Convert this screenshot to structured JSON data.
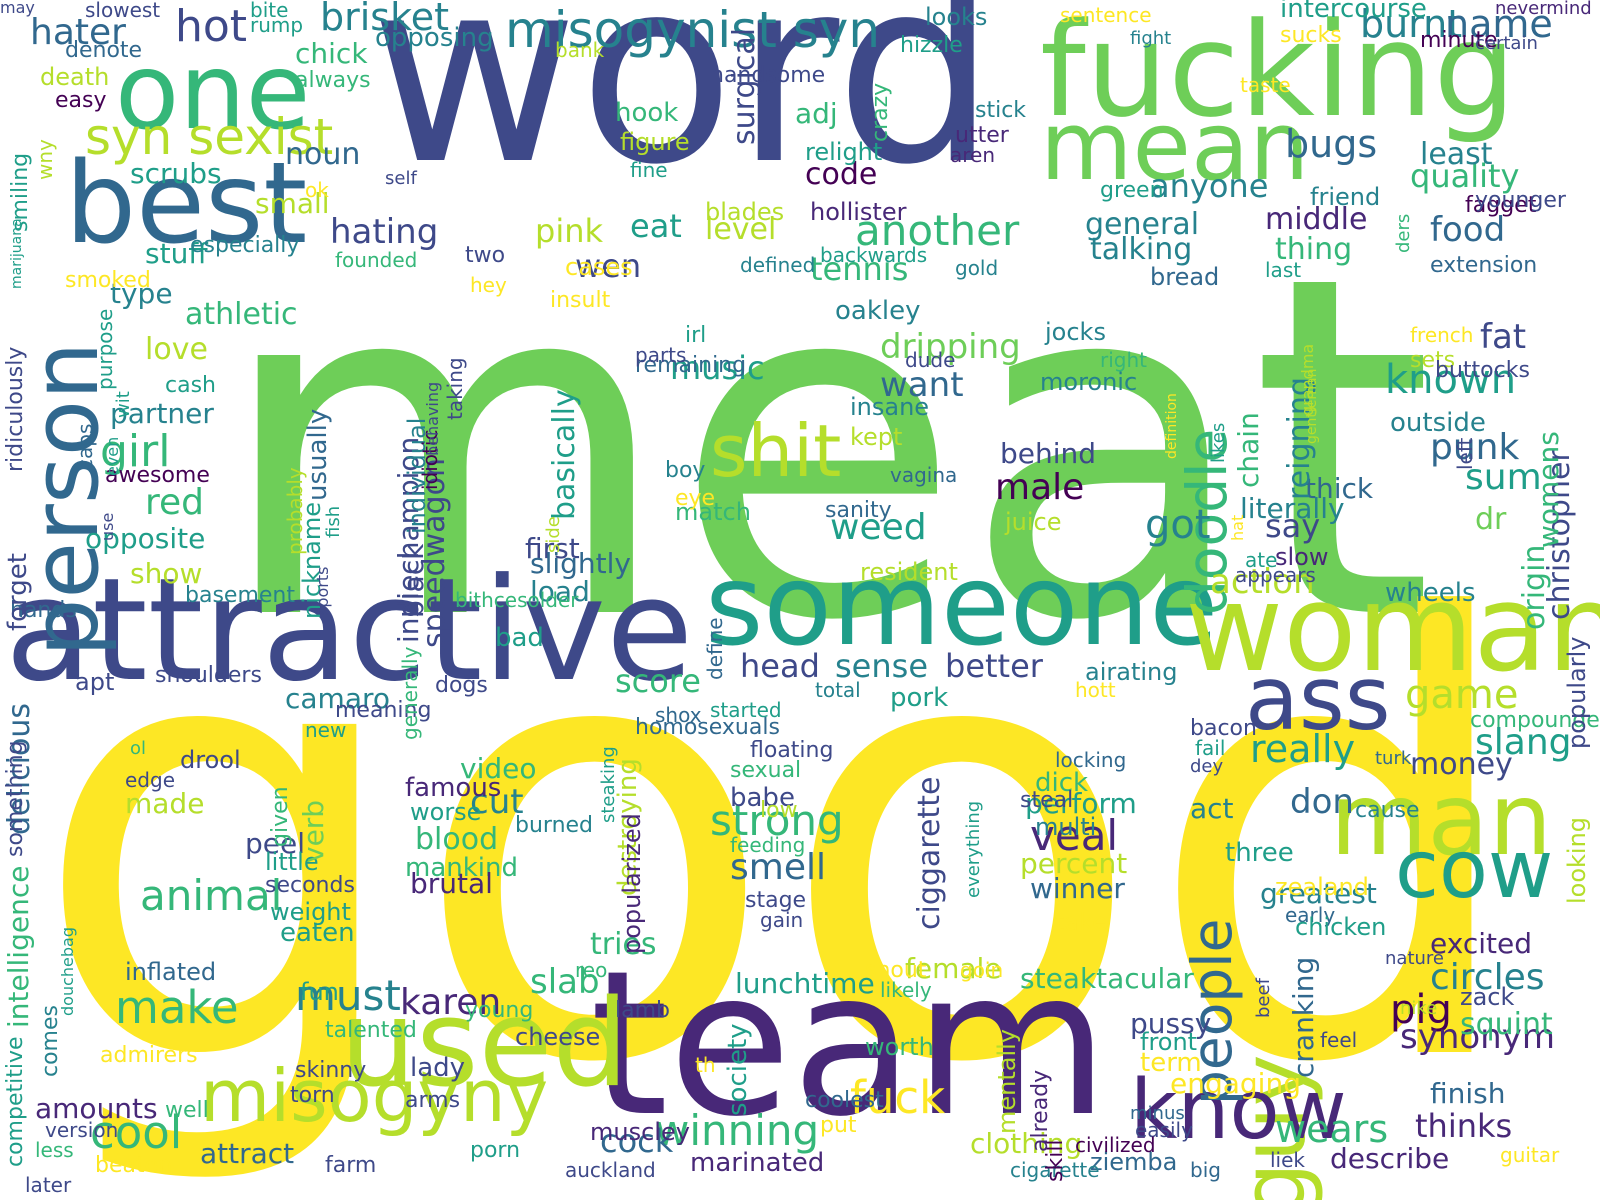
{
  "palette": {
    "yellow": "#fde725",
    "lime": "#b5de2b",
    "green": "#6ece58",
    "emerald": "#35b779",
    "teal": "#1f9e89",
    "cyan": "#26828e",
    "blue": "#31688e",
    "indigo": "#3e4989",
    "purple": "#482878",
    "dark": "#440154"
  },
  "words": [
    {
      "t": "meat",
      "c": "green"
    },
    {
      "t": "good",
      "c": "yellow"
    },
    {
      "t": "word",
      "c": "indigo"
    },
    {
      "t": "team",
      "c": "purple"
    },
    {
      "t": "fucking",
      "c": "green"
    },
    {
      "t": "attractive",
      "c": "indigo"
    },
    {
      "t": "someone",
      "c": "teal"
    },
    {
      "t": "woman",
      "c": "lime"
    },
    {
      "t": "used",
      "c": "lime"
    },
    {
      "t": "one",
      "c": "emerald"
    },
    {
      "t": "best",
      "c": "blue"
    },
    {
      "t": "man",
      "c": "lime"
    },
    {
      "t": "mean",
      "c": "green"
    },
    {
      "t": "person",
      "c": "blue"
    },
    {
      "t": "ass",
      "c": "indigo"
    },
    {
      "t": "cow",
      "c": "teal"
    },
    {
      "t": "guy",
      "c": "lime"
    },
    {
      "t": "know",
      "c": "purple"
    },
    {
      "t": "misogyny",
      "c": "lime"
    },
    {
      "t": "shit",
      "c": "lime"
    },
    {
      "t": "people",
      "c": "blue"
    },
    {
      "t": "doodle",
      "c": "emerald"
    },
    {
      "t": "misogynist syn",
      "c": "cyan"
    },
    {
      "t": "syn sexist",
      "c": "lime"
    },
    {
      "t": "hot",
      "c": "indigo"
    },
    {
      "t": "brisket",
      "c": "cyan"
    },
    {
      "t": "fuck",
      "c": "yellow"
    },
    {
      "t": "cool",
      "c": "emerald"
    },
    {
      "t": "make",
      "c": "emerald"
    },
    {
      "t": "winning",
      "c": "emerald"
    },
    {
      "t": "strong",
      "c": "emerald"
    },
    {
      "t": "must",
      "c": "cyan"
    },
    {
      "t": "animal",
      "c": "emerald"
    },
    {
      "t": "veal",
      "c": "purple"
    },
    {
      "t": "another",
      "c": "emerald"
    },
    {
      "t": "burnt",
      "c": "cyan"
    },
    {
      "t": "bugs",
      "c": "blue"
    },
    {
      "t": "known",
      "c": "teal"
    },
    {
      "t": "game",
      "c": "lime"
    },
    {
      "t": "hater",
      "c": "blue"
    },
    {
      "t": "name",
      "c": "blue"
    },
    {
      "t": "intercourse",
      "c": "teal"
    },
    {
      "t": "opposing",
      "c": "cyan"
    },
    {
      "t": "chick",
      "c": "emerald"
    },
    {
      "t": "noun",
      "c": "blue"
    },
    {
      "t": "girl",
      "c": "emerald"
    },
    {
      "t": "red",
      "c": "emerald"
    },
    {
      "t": "code",
      "c": "dark"
    },
    {
      "t": "adj",
      "c": "emerald"
    },
    {
      "t": "quality",
      "c": "emerald"
    },
    {
      "t": "anyone",
      "c": "cyan"
    },
    {
      "t": "food",
      "c": "blue"
    },
    {
      "t": "fat",
      "c": "indigo"
    },
    {
      "t": "pig",
      "c": "dark"
    },
    {
      "t": "slang",
      "c": "teal"
    },
    {
      "t": "money",
      "c": "indigo"
    },
    {
      "t": "pink",
      "c": "lime"
    },
    {
      "t": "eat",
      "c": "teal"
    },
    {
      "t": "level",
      "c": "lime"
    },
    {
      "t": "hating",
      "c": "indigo"
    },
    {
      "t": "tennis",
      "c": "emerald"
    },
    {
      "t": "wen",
      "c": "indigo"
    },
    {
      "t": "music",
      "c": "teal"
    },
    {
      "t": "dripping",
      "c": "green"
    },
    {
      "t": "want",
      "c": "blue"
    },
    {
      "t": "oakley",
      "c": "cyan"
    },
    {
      "t": "got",
      "c": "cyan"
    },
    {
      "t": "say",
      "c": "indigo"
    },
    {
      "t": "punk",
      "c": "blue"
    },
    {
      "t": "sum",
      "c": "teal"
    },
    {
      "t": "weed",
      "c": "teal"
    },
    {
      "t": "male",
      "c": "dark"
    },
    {
      "t": "behind",
      "c": "indigo"
    },
    {
      "t": "action",
      "c": "lime"
    },
    {
      "t": "wheels",
      "c": "cyan"
    },
    {
      "t": "head",
      "c": "indigo"
    },
    {
      "t": "sense",
      "c": "cyan"
    },
    {
      "t": "better",
      "c": "indigo"
    },
    {
      "t": "score",
      "c": "emerald"
    },
    {
      "t": "camaro",
      "c": "cyan"
    },
    {
      "t": "pork",
      "c": "teal"
    },
    {
      "t": "really",
      "c": "teal"
    },
    {
      "t": "don",
      "c": "blue"
    },
    {
      "t": "cut",
      "c": "cyan"
    },
    {
      "t": "video",
      "c": "emerald"
    },
    {
      "t": "famous",
      "c": "purple"
    },
    {
      "t": "blood",
      "c": "emerald"
    },
    {
      "t": "mankind",
      "c": "emerald"
    },
    {
      "t": "brutal",
      "c": "purple"
    },
    {
      "t": "smell",
      "c": "blue"
    },
    {
      "t": "perform",
      "c": "teal"
    },
    {
      "t": "percent",
      "c": "lime"
    },
    {
      "t": "winner",
      "c": "blue"
    },
    {
      "t": "greatest",
      "c": "cyan"
    },
    {
      "t": "circles",
      "c": "cyan"
    },
    {
      "t": "synonym",
      "c": "purple"
    },
    {
      "t": "finish",
      "c": "blue"
    },
    {
      "t": "thinks",
      "c": "purple"
    },
    {
      "t": "wears",
      "c": "emerald"
    },
    {
      "t": "describe",
      "c": "purple"
    },
    {
      "t": "clothing",
      "c": "lime"
    },
    {
      "t": "cock",
      "c": "blue"
    },
    {
      "t": "attract",
      "c": "blue"
    },
    {
      "t": "slab",
      "c": "emerald"
    },
    {
      "t": "karen",
      "c": "purple"
    },
    {
      "t": "lunchtime",
      "c": "teal"
    },
    {
      "t": "female",
      "c": "lime"
    },
    {
      "t": "steaktacular",
      "c": "emerald"
    },
    {
      "t": "squint",
      "c": "emerald"
    },
    {
      "t": "excited",
      "c": "purple"
    },
    {
      "t": "engaging",
      "c": "yellow"
    },
    {
      "t": "pussy",
      "c": "indigo"
    },
    {
      "t": "amounts",
      "c": "purple"
    },
    {
      "t": "marinated",
      "c": "purple"
    },
    {
      "t": "ziemba",
      "c": "blue"
    },
    {
      "t": "liek",
      "c": "indigo"
    },
    {
      "t": "guitar",
      "c": "yellow"
    },
    {
      "t": "tries",
      "c": "emerald"
    },
    {
      "t": "inflated",
      "c": "blue"
    },
    {
      "t": "eaten",
      "c": "teal"
    },
    {
      "t": "weight",
      "c": "teal"
    },
    {
      "t": "peel",
      "c": "indigo"
    },
    {
      "t": "little",
      "c": "teal"
    },
    {
      "t": "seconds",
      "c": "indigo"
    },
    {
      "t": "made",
      "c": "lime"
    },
    {
      "t": "edge",
      "c": "indigo"
    },
    {
      "t": "shoulders",
      "c": "indigo"
    },
    {
      "t": "apt",
      "c": "indigo"
    },
    {
      "t": "basement",
      "c": "cyan"
    },
    {
      "t": "show",
      "c": "lime"
    },
    {
      "t": "opposite",
      "c": "teal"
    },
    {
      "t": "awesome",
      "c": "dark"
    },
    {
      "t": "partner",
      "c": "cyan"
    },
    {
      "t": "cash",
      "c": "teal"
    },
    {
      "t": "stuff",
      "c": "teal"
    },
    {
      "t": "type",
      "c": "cyan"
    },
    {
      "t": "scrubs",
      "c": "teal"
    },
    {
      "t": "small",
      "c": "lime"
    },
    {
      "t": "especially",
      "c": "cyan"
    },
    {
      "t": "two",
      "c": "indigo"
    },
    {
      "t": "always",
      "c": "emerald"
    },
    {
      "t": "death",
      "c": "lime"
    },
    {
      "t": "easy",
      "c": "dark"
    },
    {
      "t": "denote",
      "c": "blue"
    },
    {
      "t": "slowest",
      "c": "indigo"
    },
    {
      "t": "rump",
      "c": "teal"
    },
    {
      "t": "bite",
      "c": "teal"
    },
    {
      "t": "looks",
      "c": "cyan"
    },
    {
      "t": "hizzle",
      "c": "teal"
    },
    {
      "t": "handsome",
      "c": "indigo"
    },
    {
      "t": "bank",
      "c": "lime"
    },
    {
      "t": "sentence",
      "c": "yellow"
    },
    {
      "t": "sucks",
      "c": "yellow"
    },
    {
      "t": "fight",
      "c": "cyan"
    },
    {
      "t": "minute",
      "c": "dark"
    },
    {
      "t": "nevermind",
      "c": "purple"
    },
    {
      "t": "certain",
      "c": "indigo"
    },
    {
      "t": "taste",
      "c": "yellow"
    },
    {
      "t": "least",
      "c": "cyan"
    },
    {
      "t": "friend",
      "c": "cyan"
    },
    {
      "t": "green",
      "c": "teal"
    },
    {
      "t": "fagget",
      "c": "dark"
    },
    {
      "t": "younger",
      "c": "indigo"
    },
    {
      "t": "general",
      "c": "cyan"
    },
    {
      "t": "middle",
      "c": "purple"
    },
    {
      "t": "talking",
      "c": "cyan"
    },
    {
      "t": "thing",
      "c": "emerald"
    },
    {
      "t": "extension",
      "c": "blue"
    },
    {
      "t": "bread",
      "c": "blue"
    },
    {
      "t": "last",
      "c": "teal"
    },
    {
      "t": "french",
      "c": "yellow"
    },
    {
      "t": "sets",
      "c": "lime"
    },
    {
      "t": "buttocks",
      "c": "indigo"
    },
    {
      "t": "outside",
      "c": "cyan"
    },
    {
      "t": "jocks",
      "c": "cyan"
    },
    {
      "t": "right",
      "c": "emerald"
    },
    {
      "t": "moronic",
      "c": "cyan"
    },
    {
      "t": "thick",
      "c": "blue"
    },
    {
      "t": "literally",
      "c": "cyan"
    },
    {
      "t": "dr",
      "c": "green"
    },
    {
      "t": "slow",
      "c": "purple"
    },
    {
      "t": "ate",
      "c": "teal"
    },
    {
      "t": "appears",
      "c": "indigo"
    },
    {
      "t": "insane",
      "c": "cyan"
    },
    {
      "t": "kept",
      "c": "lime"
    },
    {
      "t": "vagina",
      "c": "blue"
    },
    {
      "t": "sanity",
      "c": "blue"
    },
    {
      "t": "juice",
      "c": "lime"
    },
    {
      "t": "resident",
      "c": "lime"
    },
    {
      "t": "match",
      "c": "emerald"
    },
    {
      "t": "first",
      "c": "indigo"
    },
    {
      "t": "slightly",
      "c": "blue"
    },
    {
      "t": "load",
      "c": "cyan"
    },
    {
      "t": "boy",
      "c": "cyan"
    },
    {
      "t": "eye",
      "c": "yellow"
    },
    {
      "t": "remaining",
      "c": "blue"
    },
    {
      "t": "parts",
      "c": "indigo"
    },
    {
      "t": "irl",
      "c": "teal"
    },
    {
      "t": "dude",
      "c": "indigo"
    },
    {
      "t": "love",
      "c": "lime"
    },
    {
      "t": "athletic",
      "c": "emerald"
    },
    {
      "t": "smoked",
      "c": "yellow"
    },
    {
      "t": "insult",
      "c": "yellow"
    },
    {
      "t": "cases",
      "c": "yellow"
    },
    {
      "t": "defined",
      "c": "cyan"
    },
    {
      "t": "gold",
      "c": "cyan"
    },
    {
      "t": "backwards",
      "c": "teal"
    },
    {
      "t": "founded",
      "c": "emerald"
    },
    {
      "t": "ok",
      "c": "yellow"
    },
    {
      "t": "self",
      "c": "indigo"
    },
    {
      "t": "hey",
      "c": "yellow"
    },
    {
      "t": "hook",
      "c": "emerald"
    },
    {
      "t": "figure",
      "c": "lime"
    },
    {
      "t": "fine",
      "c": "teal"
    },
    {
      "t": "blades",
      "c": "lime"
    },
    {
      "t": "hollister",
      "c": "purple"
    },
    {
      "t": "relight",
      "c": "teal"
    },
    {
      "t": "aren",
      "c": "purple"
    },
    {
      "t": "utter",
      "c": "purple"
    },
    {
      "t": "stick",
      "c": "cyan"
    },
    {
      "t": "hands",
      "c": "blue"
    },
    {
      "t": "bithcesolder",
      "c": "emerald"
    },
    {
      "t": "dogs",
      "c": "indigo"
    },
    {
      "t": "bad",
      "c": "teal"
    },
    {
      "t": "started",
      "c": "teal"
    },
    {
      "t": "shox",
      "c": "blue"
    },
    {
      "t": "homosexuals",
      "c": "blue"
    },
    {
      "t": "total",
      "c": "cyan"
    },
    {
      "t": "airating",
      "c": "cyan"
    },
    {
      "t": "hott",
      "c": "yellow"
    },
    {
      "t": "meaning",
      "c": "indigo"
    },
    {
      "t": "new",
      "c": "teal"
    },
    {
      "t": "ol",
      "c": "emerald"
    },
    {
      "t": "drool",
      "c": "indigo"
    },
    {
      "t": "floating",
      "c": "indigo"
    },
    {
      "t": "sexual",
      "c": "emerald"
    },
    {
      "t": "babe",
      "c": "indigo"
    },
    {
      "t": "low",
      "c": "lime"
    },
    {
      "t": "feeding",
      "c": "emerald"
    },
    {
      "t": "stage",
      "c": "indigo"
    },
    {
      "t": "gain",
      "c": "indigo"
    },
    {
      "t": "worse",
      "c": "teal"
    },
    {
      "t": "burned",
      "c": "cyan"
    },
    {
      "t": "locking",
      "c": "blue"
    },
    {
      "t": "dick",
      "c": "emerald"
    },
    {
      "t": "steal",
      "c": "indigo"
    },
    {
      "t": "multi",
      "c": "cyan"
    },
    {
      "t": "take",
      "c": "yellow"
    },
    {
      "t": "bacon",
      "c": "indigo"
    },
    {
      "t": "fail",
      "c": "teal"
    },
    {
      "t": "dey",
      "c": "indigo"
    },
    {
      "t": "turk",
      "c": "blue"
    },
    {
      "t": "act",
      "c": "cyan"
    },
    {
      "t": "three",
      "c": "teal"
    },
    {
      "t": "compounded",
      "c": "emerald"
    },
    {
      "t": "cause",
      "c": "cyan"
    },
    {
      "t": "zealand",
      "c": "yellow"
    },
    {
      "t": "early",
      "c": "blue"
    },
    {
      "t": "chicken",
      "c": "teal"
    },
    {
      "t": "nature",
      "c": "indigo"
    },
    {
      "t": "nike",
      "c": "lime"
    },
    {
      "t": "zack",
      "c": "indigo"
    },
    {
      "t": "feel",
      "c": "indigo"
    },
    {
      "t": "front",
      "c": "teal"
    },
    {
      "t": "term",
      "c": "yellow"
    },
    {
      "t": "minus",
      "c": "blue"
    },
    {
      "t": "easily",
      "c": "indigo"
    },
    {
      "t": "civilized",
      "c": "dark"
    },
    {
      "t": "cigarette",
      "c": "cyan"
    },
    {
      "t": "big",
      "c": "blue"
    },
    {
      "t": "shout",
      "c": "yellow"
    },
    {
      "t": "goin",
      "c": "yellow"
    },
    {
      "t": "likely",
      "c": "emerald"
    },
    {
      "t": "fun",
      "c": "teal"
    },
    {
      "t": "lamb",
      "c": "indigo"
    },
    {
      "t": "young",
      "c": "emerald"
    },
    {
      "t": "cheese",
      "c": "indigo"
    },
    {
      "t": "reo",
      "c": "emerald"
    },
    {
      "t": "lady",
      "c": "indigo"
    },
    {
      "t": "arms",
      "c": "indigo"
    },
    {
      "t": "muscley",
      "c": "purple"
    },
    {
      "t": "th",
      "c": "yellow"
    },
    {
      "t": "worth",
      "c": "emerald"
    },
    {
      "t": "coolest",
      "c": "blue"
    },
    {
      "t": "put",
      "c": "yellow"
    },
    {
      "t": "porn",
      "c": "teal"
    },
    {
      "t": "auckland",
      "c": "indigo"
    },
    {
      "t": "farm",
      "c": "indigo"
    },
    {
      "t": "well",
      "c": "emerald"
    },
    {
      "t": "version",
      "c": "indigo"
    },
    {
      "t": "less",
      "c": "emerald"
    },
    {
      "t": "beaten",
      "c": "yellow"
    },
    {
      "t": "later",
      "c": "indigo"
    },
    {
      "t": "talented",
      "c": "emerald"
    },
    {
      "t": "admirers",
      "c": "yellow"
    },
    {
      "t": "skinny",
      "c": "indigo"
    },
    {
      "t": "torn",
      "c": "indigo"
    },
    {
      "t": "nickname",
      "c": "teal"
    },
    {
      "t": "indiechampion",
      "c": "indigo"
    },
    {
      "t": "speedwagon",
      "c": "indigo"
    },
    {
      "t": "black",
      "c": "indigo"
    },
    {
      "t": "basically",
      "c": "teal"
    },
    {
      "t": "verb",
      "c": "green"
    },
    {
      "t": "ciggarette",
      "c": "indigo"
    },
    {
      "t": "destroying",
      "c": "lime"
    },
    {
      "t": "usually",
      "c": "blue"
    },
    {
      "t": "chain",
      "c": "emerald"
    },
    {
      "t": "reigning",
      "c": "cyan"
    },
    {
      "t": "origin",
      "c": "emerald"
    },
    {
      "t": "christopher",
      "c": "indigo"
    },
    {
      "t": "womens",
      "c": "emerald"
    },
    {
      "t": "looking",
      "c": "lime"
    },
    {
      "t": "popularly",
      "c": "indigo"
    },
    {
      "t": "cranking",
      "c": "blue"
    },
    {
      "t": "skill",
      "c": "dark"
    },
    {
      "t": "already",
      "c": "purple"
    },
    {
      "t": "mentally",
      "c": "lime"
    },
    {
      "t": "society",
      "c": "teal"
    },
    {
      "t": "popularized",
      "c": "purple"
    },
    {
      "t": "everything",
      "c": "teal"
    },
    {
      "t": "define",
      "c": "blue"
    },
    {
      "t": "surgical",
      "c": "indigo"
    },
    {
      "t": "crazy",
      "c": "emerald"
    },
    {
      "t": "smiling",
      "c": "teal"
    },
    {
      "t": "wny",
      "c": "lime"
    },
    {
      "t": "marijuana",
      "c": "teal"
    },
    {
      "t": "ridiculously",
      "c": "indigo"
    },
    {
      "t": "purpose",
      "c": "teal"
    },
    {
      "t": "wit",
      "c": "teal"
    },
    {
      "t": "caps",
      "c": "blue"
    },
    {
      "t": "even",
      "c": "teal"
    },
    {
      "t": "use",
      "c": "indigo"
    },
    {
      "t": "forget",
      "c": "indigo"
    },
    {
      "t": "delicious",
      "c": "blue"
    },
    {
      "t": "something",
      "c": "indigo"
    },
    {
      "t": "intelligence",
      "c": "emerald"
    },
    {
      "t": "competitive",
      "c": "teal"
    },
    {
      "t": "comes",
      "c": "cyan"
    },
    {
      "t": "douchebag",
      "c": "teal"
    },
    {
      "t": "probably",
      "c": "lime"
    },
    {
      "t": "sports",
      "c": "indigo"
    },
    {
      "t": "fish",
      "c": "teal"
    },
    {
      "t": "individual",
      "c": "cyan"
    },
    {
      "t": "idiotic",
      "c": "dark"
    },
    {
      "t": "behaving",
      "c": "indigo"
    },
    {
      "t": "taking",
      "c": "indigo"
    },
    {
      "t": "side",
      "c": "lime"
    },
    {
      "t": "generally",
      "c": "emerald"
    },
    {
      "t": "given",
      "c": "emerald"
    },
    {
      "t": "likes",
      "c": "teal"
    },
    {
      "t": "definition",
      "c": "yellow"
    },
    {
      "t": "grandma",
      "c": "lime"
    },
    {
      "t": "gentleman",
      "c": "lime"
    },
    {
      "t": "hat",
      "c": "yellow"
    },
    {
      "t": "ders",
      "c": "emerald"
    },
    {
      "t": "left",
      "c": "indigo"
    },
    {
      "t": "beef",
      "c": "indigo"
    },
    {
      "t": "steaking",
      "c": "teal"
    },
    {
      "t": "may",
      "c": "indigo"
    }
  ]
}
